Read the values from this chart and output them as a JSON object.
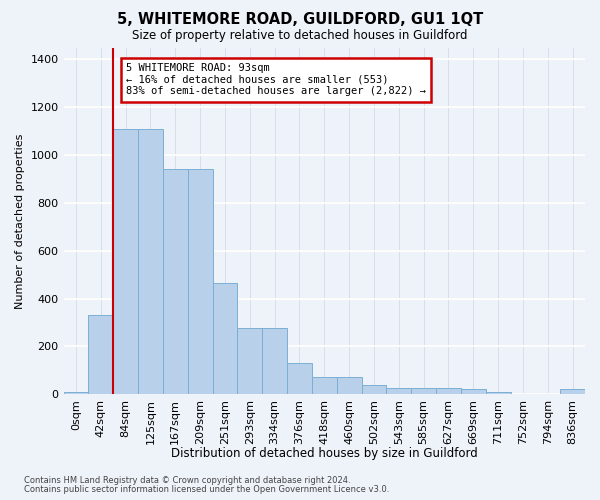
{
  "title": "5, WHITEMORE ROAD, GUILDFORD, GU1 1QT",
  "subtitle": "Size of property relative to detached houses in Guildford",
  "xlabel": "Distribution of detached houses by size in Guildford",
  "ylabel": "Number of detached properties",
  "bar_labels": [
    "0sqm",
    "42sqm",
    "84sqm",
    "125sqm",
    "167sqm",
    "209sqm",
    "251sqm",
    "293sqm",
    "334sqm",
    "376sqm",
    "418sqm",
    "460sqm",
    "502sqm",
    "543sqm",
    "585sqm",
    "627sqm",
    "669sqm",
    "711sqm",
    "752sqm",
    "794sqm",
    "836sqm"
  ],
  "bar_values": [
    10,
    330,
    1110,
    1110,
    940,
    940,
    465,
    275,
    275,
    130,
    70,
    70,
    40,
    25,
    25,
    25,
    20,
    10,
    0,
    0,
    20
  ],
  "bar_color": "#b8d0ea",
  "bar_edge_color": "#7aafd4",
  "vline_color": "#cc0000",
  "vline_bin_index": 2,
  "annotation_text": "5 WHITEMORE ROAD: 93sqm\n← 16% of detached houses are smaller (553)\n83% of semi-detached houses are larger (2,822) →",
  "annotation_box_color": "#ffffff",
  "annotation_box_edge": "#cc0000",
  "ylim": [
    0,
    1450
  ],
  "yticks": [
    0,
    200,
    400,
    600,
    800,
    1000,
    1200,
    1400
  ],
  "footer1": "Contains HM Land Registry data © Crown copyright and database right 2024.",
  "footer2": "Contains public sector information licensed under the Open Government Licence v3.0.",
  "background_color": "#eef2f9",
  "grid_color": "#d8dde8"
}
